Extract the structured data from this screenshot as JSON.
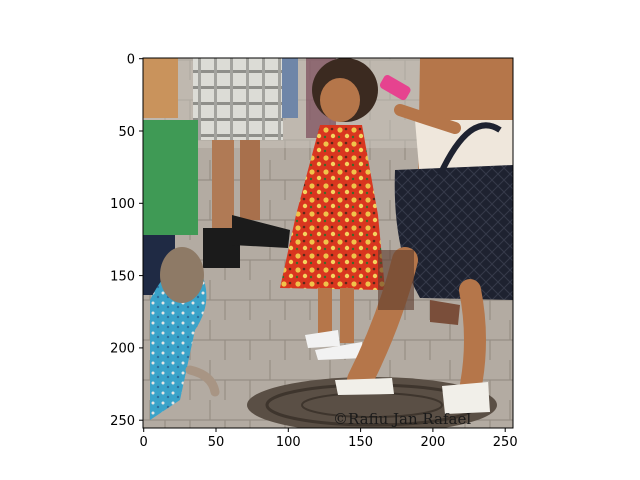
{
  "image": {
    "description": "Street scene photo: a toddler in a red floral sundress stands on cobblestone pavement among adults' legs; a woman on the right holds a pink phone and a black quilted handbag; a child in a green shirt and a monkey in a blue outfit on the left; a manhole cover in the foreground.",
    "colors": {
      "sky_pavement": "#b9b1a8",
      "pavement_dark": "#8c857d",
      "dress_red": "#d9361f",
      "dress_yellow": "#f0c34a",
      "skin": "#b5764a",
      "handbag": "#1e2230",
      "phone": "#e6438f",
      "green_shirt": "#3f9a55",
      "monkey_outfit": "#3aa3c9",
      "plaid_shorts": "#d7d7d2",
      "manhole": "#5a4f45"
    },
    "watermark": "©Rafiu  Jan Rafael"
  },
  "axes": {
    "x_ticks": [
      "0",
      "50",
      "100",
      "150",
      "200",
      "250"
    ],
    "y_ticks": [
      "0",
      "50",
      "100",
      "150",
      "200",
      "250"
    ]
  }
}
